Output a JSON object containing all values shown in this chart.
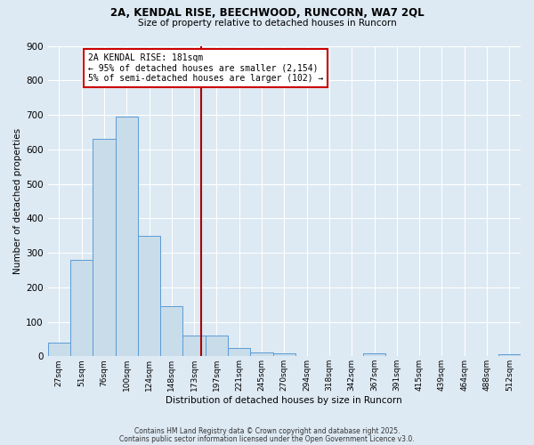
{
  "title_line1": "2A, KENDAL RISE, BEECHWOOD, RUNCORN, WA7 2QL",
  "title_line2": "Size of property relative to detached houses in Runcorn",
  "xlabel": "Distribution of detached houses by size in Runcorn",
  "ylabel": "Number of detached properties",
  "bin_labels": [
    "27sqm",
    "51sqm",
    "76sqm",
    "100sqm",
    "124sqm",
    "148sqm",
    "173sqm",
    "197sqm",
    "221sqm",
    "245sqm",
    "270sqm",
    "294sqm",
    "318sqm",
    "342sqm",
    "367sqm",
    "391sqm",
    "415sqm",
    "439sqm",
    "464sqm",
    "488sqm",
    "512sqm"
  ],
  "bar_values": [
    40,
    280,
    630,
    695,
    350,
    145,
    60,
    60,
    25,
    12,
    8,
    0,
    0,
    0,
    8,
    0,
    0,
    0,
    0,
    0,
    5
  ],
  "bar_color": "#c9dcea",
  "bar_edge_color": "#5b9bd5",
  "vline_x": 6.33,
  "vline_color": "#aa0000",
  "annotation_text": "2A KENDAL RISE: 181sqm\n← 95% of detached houses are smaller (2,154)\n5% of semi-detached houses are larger (102) →",
  "annotation_box_facecolor": "#ffffff",
  "annotation_box_edgecolor": "#cc0000",
  "footer_line1": "Contains HM Land Registry data © Crown copyright and database right 2025.",
  "footer_line2": "Contains public sector information licensed under the Open Government Licence v3.0.",
  "bg_color": "#dde9f3",
  "plot_bg_color": "#dde9f3",
  "grid_color": "#ffffff",
  "ylim": [
    0,
    900
  ],
  "yticks": [
    0,
    100,
    200,
    300,
    400,
    500,
    600,
    700,
    800,
    900
  ]
}
